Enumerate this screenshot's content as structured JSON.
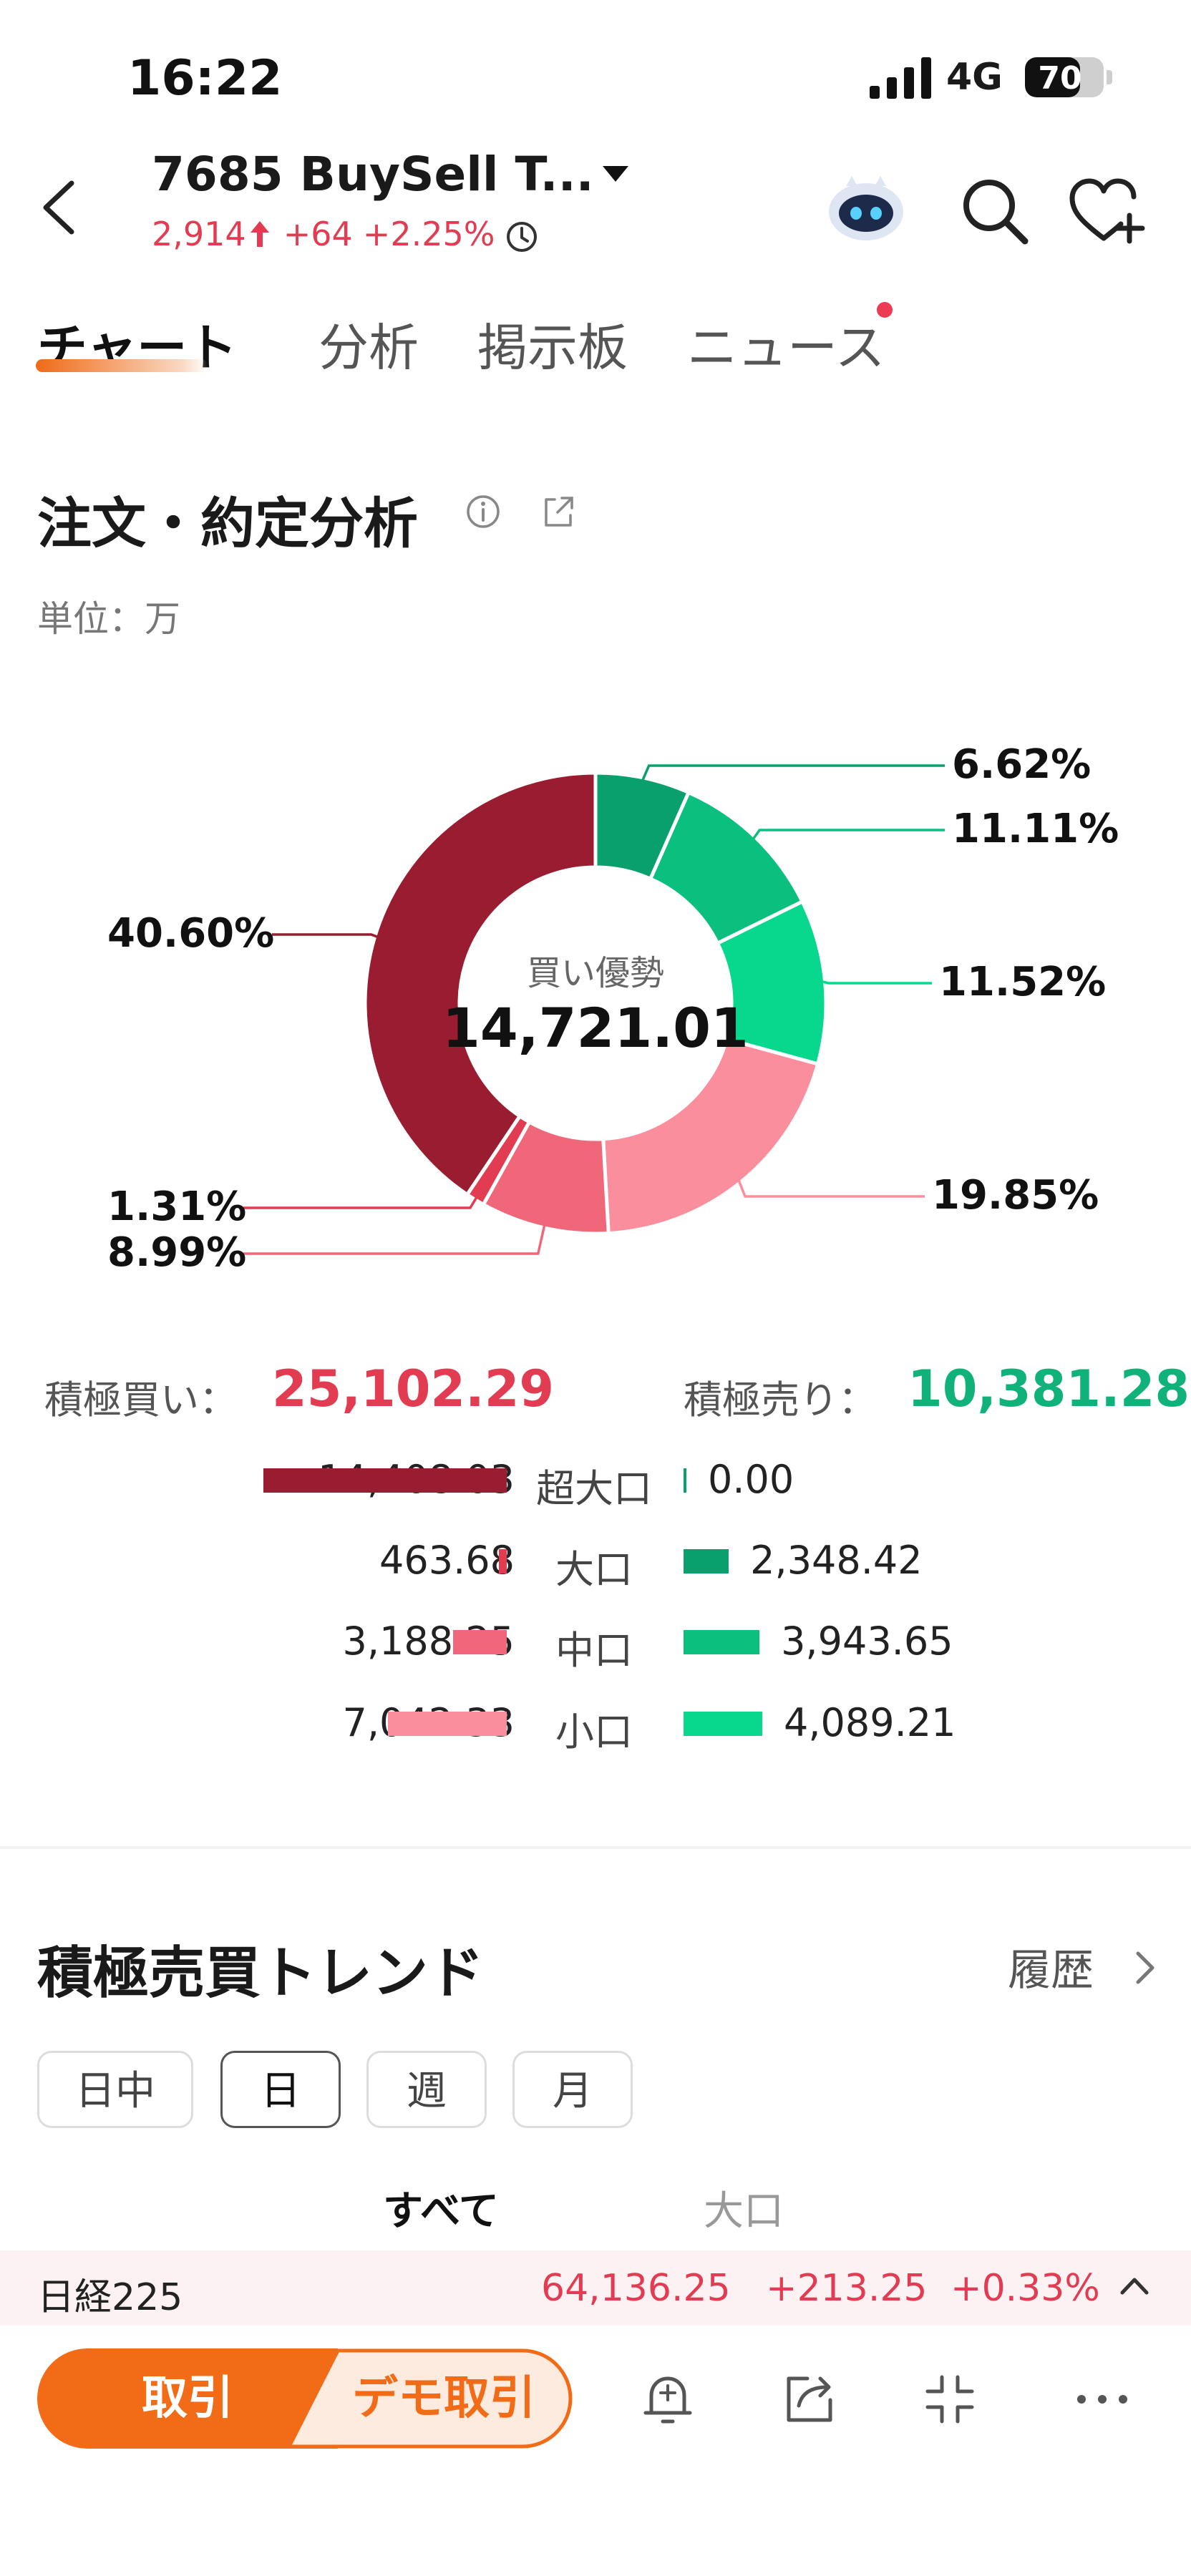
{
  "status_bar": {
    "time": "16:22",
    "network": "4G",
    "battery": "70"
  },
  "header": {
    "title": "7685  BuySell T...",
    "price": "2,914",
    "change": "+64",
    "change_pct": "+2.25%"
  },
  "tabs": [
    "チャート",
    "分析",
    "掲示板",
    "ニュース"
  ],
  "section": {
    "title": "注文・約定分析",
    "unit": "単位：万"
  },
  "donut": {
    "center_label": "買い優勢",
    "center_value": "14,721.01",
    "labels": [
      "6.62%",
      "11.11%",
      "11.52%",
      "19.85%",
      "8.99%",
      "1.31%",
      "40.60%"
    ]
  },
  "chart_data": {
    "type": "pie",
    "title": "注文・約定分析",
    "unit": "単位：万",
    "slices": [
      {
        "label": "大口 売り",
        "value": 6.62,
        "color": "#0aa06e"
      },
      {
        "label": "中口 売り",
        "value": 11.11,
        "color": "#0bc07f"
      },
      {
        "label": "小口 売り",
        "value": 11.52,
        "color": "#08d88e"
      },
      {
        "label": "小口 買い",
        "value": 19.85,
        "color": "#fb8e9c"
      },
      {
        "label": "中口 買い",
        "value": 8.99,
        "color": "#f0677a"
      },
      {
        "label": "大口 買い",
        "value": 1.31,
        "color": "#e23c52"
      },
      {
        "label": "超大口 買い",
        "value": 40.6,
        "color": "#9a1c30"
      }
    ],
    "center_label": "買い優勢",
    "center_value": 14721.01
  },
  "totals": {
    "buy_label": "積極買い：",
    "buy_value": "25,102.29",
    "sell_label": "積極売り：",
    "sell_value": "10,381.28"
  },
  "breakdown": [
    {
      "label": "超大口",
      "buy": "14,408.03",
      "sell": "0.00",
      "buy_amount": 14408.03,
      "sell_amount": 0.0,
      "buy_color": "#9a1c30",
      "sell_color": "#0aa06e"
    },
    {
      "label": "大口",
      "buy": "463.68",
      "sell": "2,348.42",
      "buy_amount": 463.68,
      "sell_amount": 2348.42,
      "buy_color": "#e23c52",
      "sell_color": "#0aa06e"
    },
    {
      "label": "中口",
      "buy": "3,188.25",
      "sell": "3,943.65",
      "buy_amount": 3188.25,
      "sell_amount": 3943.65,
      "buy_color": "#f0677a",
      "sell_color": "#0bc07f"
    },
    {
      "label": "小口",
      "buy": "7,042.33",
      "sell": "4,089.21",
      "buy_amount": 7042.33,
      "sell_amount": 4089.21,
      "buy_color": "#fb8e9c",
      "sell_color": "#08d88e"
    }
  ],
  "trend": {
    "title": "積極売買トレンド",
    "history": "履歴",
    "periods": [
      "日中",
      "日",
      "週",
      "月"
    ],
    "subtabs": [
      "すべて",
      "大口"
    ]
  },
  "ticker": {
    "name": "日経225",
    "value": "64,136.25",
    "change": "+213.25",
    "change_pct": "+0.33%"
  },
  "bottom": {
    "trade": "取引",
    "demo": "デモ取引"
  }
}
